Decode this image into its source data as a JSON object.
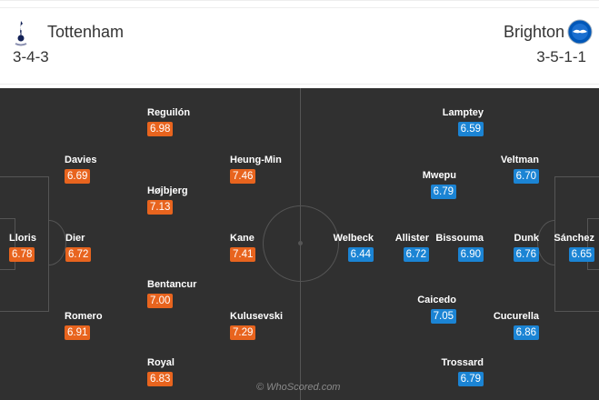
{
  "home": {
    "name": "Tottenham",
    "formation": "3-4-3",
    "color": "#e8641e",
    "crest_icon": "tottenham-crest-icon",
    "players": [
      {
        "name": "Lloris",
        "rating": "6.78"
      },
      {
        "name": "Dier",
        "rating": "6.72"
      },
      {
        "name": "Davies",
        "rating": "6.69"
      },
      {
        "name": "Romero",
        "rating": "6.91"
      },
      {
        "name": "Reguilón",
        "rating": "6.98"
      },
      {
        "name": "Højbjerg",
        "rating": "7.13"
      },
      {
        "name": "Bentancur",
        "rating": "7.00"
      },
      {
        "name": "Royal",
        "rating": "6.83"
      },
      {
        "name": "Heung-Min",
        "rating": "7.46"
      },
      {
        "name": "Kane",
        "rating": "7.41"
      },
      {
        "name": "Kulusevski",
        "rating": "7.29"
      }
    ]
  },
  "away": {
    "name": "Brighton",
    "formation": "3-5-1-1",
    "color": "#1b84d4",
    "crest_icon": "brighton-crest-icon",
    "players": [
      {
        "name": "Sánchez",
        "rating": "6.65"
      },
      {
        "name": "Dunk",
        "rating": "6.76"
      },
      {
        "name": "Veltman",
        "rating": "6.70"
      },
      {
        "name": "Cucurella",
        "rating": "6.86"
      },
      {
        "name": "Lamptey",
        "rating": "6.59"
      },
      {
        "name": "Mwepu",
        "rating": "6.79"
      },
      {
        "name": "Bissouma",
        "rating": "6.90"
      },
      {
        "name": "Caicedo",
        "rating": "7.05"
      },
      {
        "name": "Trossard",
        "rating": "6.79"
      },
      {
        "name": "Allister",
        "rating": "6.72"
      },
      {
        "name": "Welbeck",
        "rating": "6.44"
      }
    ]
  },
  "watermark": "© WhoScored.com"
}
